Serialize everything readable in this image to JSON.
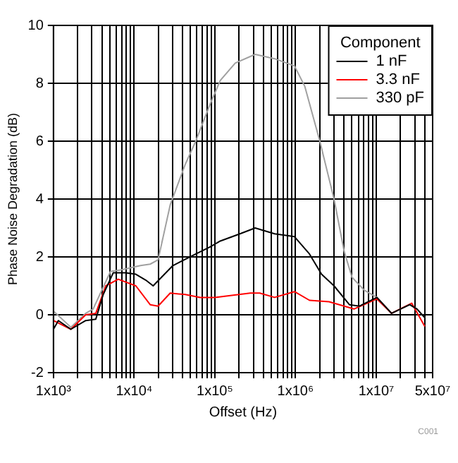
{
  "chart_data": {
    "type": "line",
    "xlabel": "Offset (Hz)",
    "ylabel": "Phase Noise Degradation (dB)",
    "legend_title": "Component",
    "legend": "top right",
    "grid": true,
    "log": "x",
    "marker": "none",
    "line_style": "solid",
    "xlim": [
      1000,
      50000000
    ],
    "ylim": [
      -2,
      10
    ],
    "xticks": [
      {
        "value": 1000,
        "label": "1x10³"
      },
      {
        "value": 2000,
        "label": null
      },
      {
        "value": 3000,
        "label": null
      },
      {
        "value": 4000,
        "label": null
      },
      {
        "value": 5000,
        "label": null
      },
      {
        "value": 6000,
        "label": null
      },
      {
        "value": 7000,
        "label": null
      },
      {
        "value": 8000,
        "label": null
      },
      {
        "value": 9000,
        "label": null
      },
      {
        "value": 10000,
        "label": "1x10⁴"
      },
      {
        "value": 20000,
        "label": null
      },
      {
        "value": 30000,
        "label": null
      },
      {
        "value": 40000,
        "label": null
      },
      {
        "value": 50000,
        "label": null
      },
      {
        "value": 60000,
        "label": null
      },
      {
        "value": 70000,
        "label": null
      },
      {
        "value": 80000,
        "label": null
      },
      {
        "value": 90000,
        "label": null
      },
      {
        "value": 100000,
        "label": "1x10⁵"
      },
      {
        "value": 200000,
        "label": null
      },
      {
        "value": 300000,
        "label": null
      },
      {
        "value": 400000,
        "label": null
      },
      {
        "value": 500000,
        "label": null
      },
      {
        "value": 600000,
        "label": null
      },
      {
        "value": 700000,
        "label": null
      },
      {
        "value": 800000,
        "label": null
      },
      {
        "value": 900000,
        "label": null
      },
      {
        "value": 1000000,
        "label": "1x10⁶"
      },
      {
        "value": 2000000,
        "label": null
      },
      {
        "value": 3000000,
        "label": null
      },
      {
        "value": 4000000,
        "label": null
      },
      {
        "value": 5000000,
        "label": null
      },
      {
        "value": 6000000,
        "label": null
      },
      {
        "value": 7000000,
        "label": null
      },
      {
        "value": 8000000,
        "label": null
      },
      {
        "value": 9000000,
        "label": null
      },
      {
        "value": 10000000,
        "label": "1x10⁷"
      },
      {
        "value": 20000000,
        "label": null
      },
      {
        "value": 30000000,
        "label": null
      },
      {
        "value": 40000000,
        "label": null
      },
      {
        "value": 50000000,
        "label": "5x10⁷"
      }
    ],
    "yticks": [
      -2,
      0,
      2,
      4,
      6,
      8,
      10
    ],
    "annotations": [
      "C001"
    ],
    "series": [
      {
        "name": "1 nF",
        "color": "#000000",
        "x": [
          1000,
          1150,
          1644,
          2512,
          3350,
          4140,
          5500,
          7850,
          10500,
          13900,
          17200,
          30200,
          58000,
          88000,
          117000,
          205000,
          316000,
          550000,
          970000,
          1490000,
          2100000,
          3000000,
          4650000,
          6200000,
          10200000,
          15500000,
          26000000,
          32000000,
          40000000
        ],
        "values": [
          -0.5,
          -0.2,
          -0.5,
          -0.2,
          -0.15,
          0.7,
          1.45,
          1.45,
          1.4,
          1.2,
          1.0,
          1.7,
          2.1,
          2.35,
          2.55,
          2.8,
          3.0,
          2.8,
          2.7,
          2.1,
          1.4,
          1.0,
          0.35,
          0.3,
          0.6,
          0.05,
          0.35,
          0.2,
          -0.1
        ]
      },
      {
        "name": "3.3 nF",
        "color": "#ff0000",
        "x": [
          1000,
          1644,
          2512,
          3350,
          4450,
          6350,
          10500,
          15800,
          19800,
          28000,
          43000,
          66000,
          100000,
          275000,
          360000,
          550000,
          970000,
          1490000,
          2600000,
          5300000,
          10200000,
          15500000,
          27500000,
          40000000
        ],
        "values": [
          -0.2,
          -0.5,
          0,
          0.05,
          1.0,
          1.23,
          1.0,
          0.35,
          0.3,
          0.75,
          0.7,
          0.6,
          0.6,
          0.75,
          0.75,
          0.6,
          0.8,
          0.5,
          0.45,
          0.2,
          0.55,
          0.05,
          0.4,
          -0.4
        ]
      },
      {
        "name": "330 pF",
        "color": "#a0a0a0",
        "x": [
          1000,
          1644,
          2512,
          3100,
          5100,
          6800,
          12000,
          15800,
          19800,
          28000,
          43000,
          58000,
          88000,
          117000,
          179000,
          316000,
          550000,
          970000,
          1300000,
          2000000,
          3000000,
          4000000,
          5000000,
          7100000,
          10200000,
          15500000,
          26000000,
          32000000,
          40000000
        ],
        "values": [
          0.13,
          -0.43,
          0.05,
          0.2,
          1.5,
          1.55,
          1.7,
          1.75,
          1.9,
          3.8,
          5.2,
          6.0,
          7.3,
          8.1,
          8.7,
          9.0,
          8.85,
          8.6,
          7.9,
          6.0,
          4.0,
          2.2,
          1.3,
          0.85,
          0.6,
          0.05,
          0.35,
          0.2,
          -0.1
        ]
      }
    ]
  }
}
